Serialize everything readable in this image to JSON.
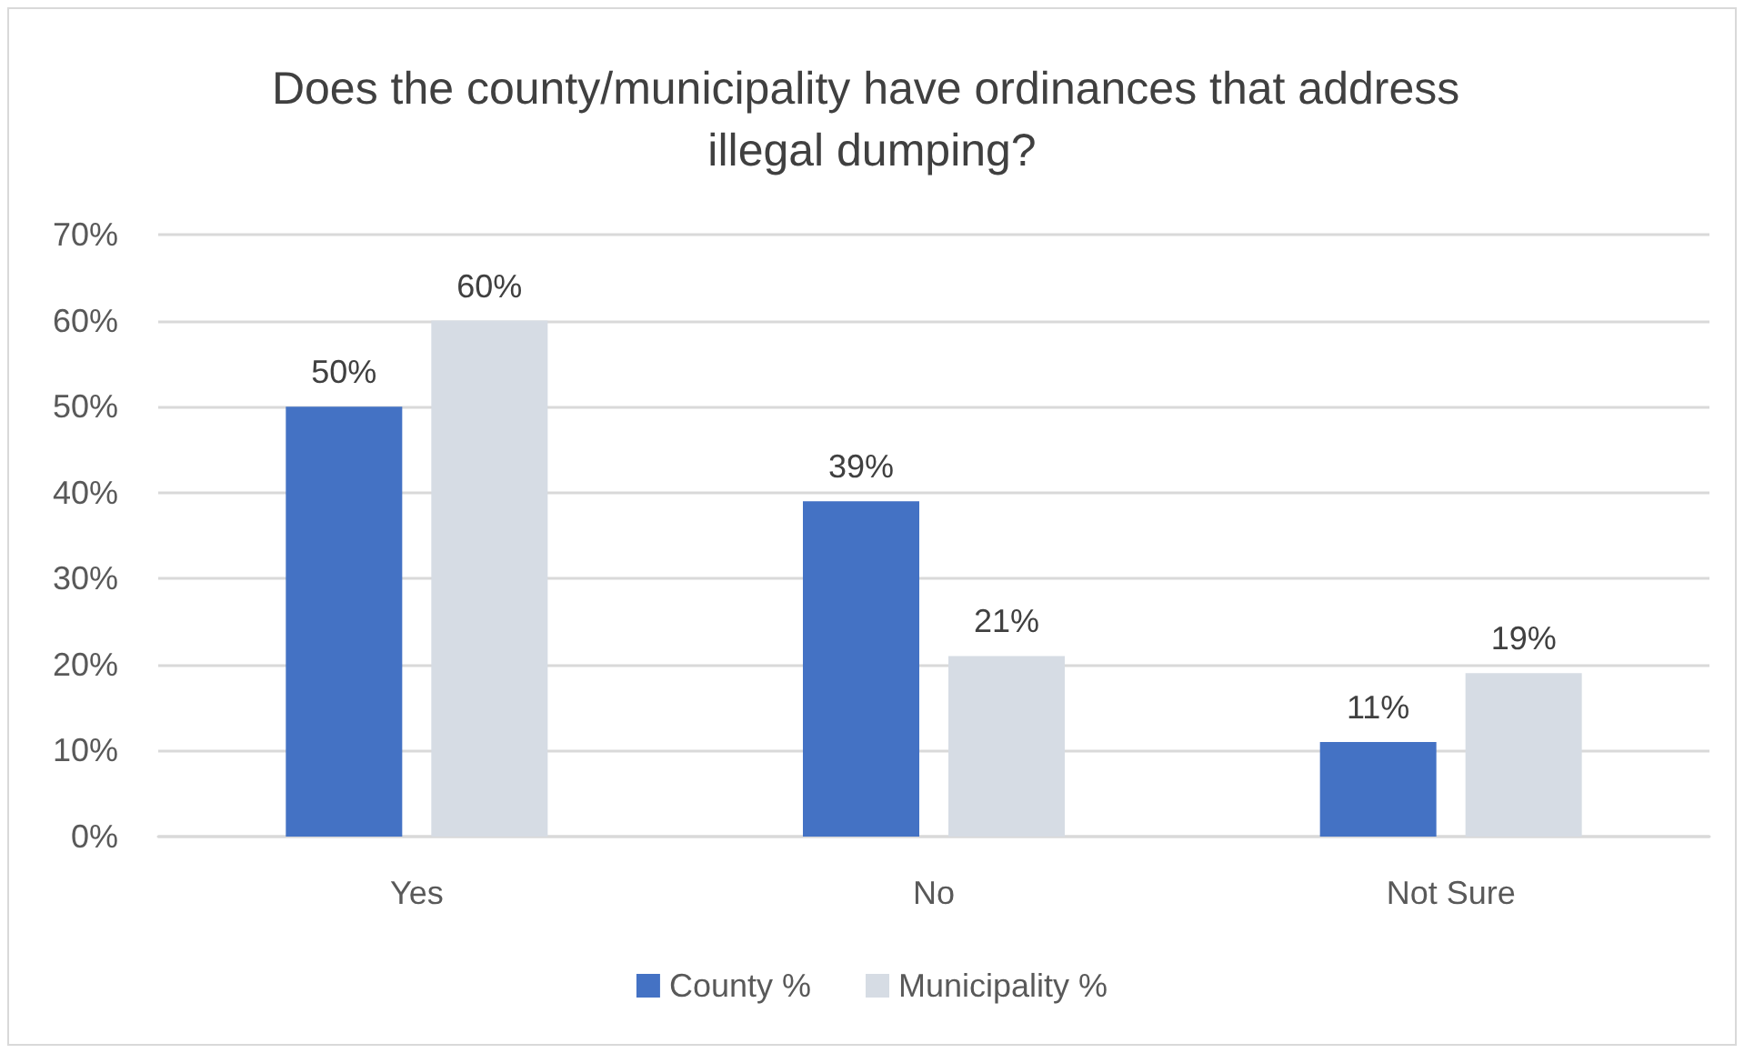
{
  "chart_data": {
    "type": "bar",
    "title": "Does the county/municipality have ordinances that address illegal dumping?",
    "categories": [
      "Yes",
      "No",
      "Not Sure"
    ],
    "series": [
      {
        "name": "County %",
        "color": "#4472c4",
        "values": [
          50,
          39,
          11
        ],
        "value_labels": [
          "50%",
          "39%",
          "11%"
        ]
      },
      {
        "name": "Municipality %",
        "color": "#d6dce4",
        "values": [
          60,
          21,
          19
        ],
        "value_labels": [
          "60%",
          "21%",
          "19%"
        ]
      }
    ],
    "ylim": [
      0,
      70
    ],
    "yticks": [
      {
        "value": 0,
        "label": "0%"
      },
      {
        "value": 10,
        "label": "10%"
      },
      {
        "value": 20,
        "label": "20%"
      },
      {
        "value": 30,
        "label": "30%"
      },
      {
        "value": 40,
        "label": "40%"
      },
      {
        "value": 50,
        "label": "50%"
      },
      {
        "value": 60,
        "label": "60%"
      },
      {
        "value": 70,
        "label": "70%"
      }
    ],
    "grid": "y",
    "legend": "bottom"
  }
}
